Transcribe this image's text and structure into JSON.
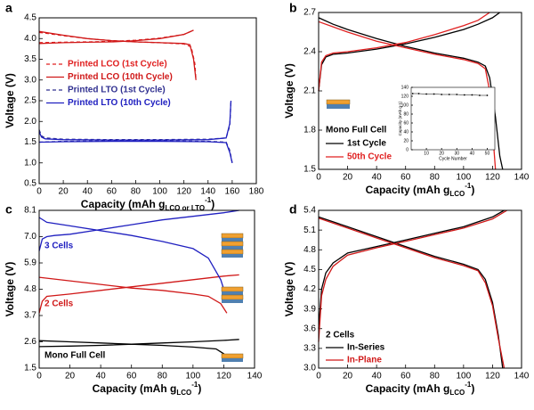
{
  "chart_data": [
    {
      "type": "line",
      "letter": "a",
      "ylabel": "Voltage (V)",
      "xlabel": [
        "Capacity (mAh g",
        "LCO or LTO",
        "-1",
        ")"
      ],
      "xlim": [
        0,
        180
      ],
      "xticks": [
        0,
        20,
        40,
        60,
        80,
        100,
        120,
        140,
        160,
        180
      ],
      "ylim": [
        0.5,
        4.5
      ],
      "yticks": [
        0.5,
        {
          "value": 1,
          "label": "1.0"
        },
        1.5,
        {
          "value": 2,
          "label": "2.0"
        },
        2.5,
        {
          "value": 3,
          "label": "3.0"
        },
        3.5,
        {
          "value": 4,
          "label": "4.0"
        },
        4.5
      ],
      "series": [
        {
          "name": "Printed LCO (1st Cycle)",
          "color": "#e02020",
          "dash": true,
          "x": [
            0,
            20,
            40,
            60,
            80,
            100,
            120,
            128,
            null,
            0,
            20,
            40,
            60,
            80,
            100,
            120,
            126,
            129,
            130
          ],
          "values": [
            3.9,
            3.91,
            3.92,
            3.93,
            3.96,
            4.01,
            4.1,
            4.2,
            null,
            4.15,
            4.07,
            4.0,
            3.95,
            3.92,
            3.9,
            3.87,
            3.8,
            3.4,
            3.0
          ]
        },
        {
          "name": "Printed LCO (10th Cycle)",
          "color": "#d01818",
          "dash": false,
          "x": [
            0,
            20,
            40,
            60,
            80,
            100,
            120,
            128,
            null,
            0,
            20,
            40,
            60,
            80,
            100,
            120,
            125,
            128,
            130
          ],
          "values": [
            3.88,
            3.9,
            3.91,
            3.92,
            3.95,
            4.0,
            4.1,
            4.2,
            null,
            4.17,
            4.08,
            4.0,
            3.95,
            3.92,
            3.9,
            3.88,
            3.85,
            3.5,
            3.0
          ]
        },
        {
          "name": "Printed LTO (1st Cycle)",
          "color": "#303090",
          "dash": true,
          "x": [
            0,
            2,
            5,
            20,
            60,
            100,
            140,
            155,
            158,
            159,
            null,
            0,
            20,
            60,
            100,
            140,
            155,
            158,
            160
          ],
          "values": [
            1.8,
            1.65,
            1.6,
            1.57,
            1.56,
            1.56,
            1.57,
            1.6,
            1.9,
            2.5,
            null,
            1.5,
            1.52,
            1.53,
            1.53,
            1.52,
            1.5,
            1.3,
            1.0
          ]
        },
        {
          "name": "Printed LTO (10th Cycle)",
          "color": "#2020c0",
          "dash": false,
          "x": [
            0,
            2,
            5,
            20,
            60,
            100,
            140,
            155,
            158,
            159,
            null,
            0,
            20,
            60,
            100,
            140,
            155,
            158,
            160
          ],
          "values": [
            1.75,
            1.62,
            1.58,
            1.56,
            1.55,
            1.55,
            1.56,
            1.6,
            1.95,
            2.5,
            null,
            1.5,
            1.51,
            1.52,
            1.52,
            1.51,
            1.49,
            1.25,
            1.0
          ]
        }
      ]
    },
    {
      "type": "line",
      "letter": "b",
      "ylabel": "Voltage (V)",
      "annotation": "Mono Full Cell",
      "xlabel": [
        "Capacity (mAh g",
        "LCO",
        "-1",
        ")"
      ],
      "xlim": [
        0,
        140
      ],
      "xticks": [
        0,
        20,
        40,
        60,
        80,
        100,
        120,
        140
      ],
      "ylim": [
        1.5,
        2.7
      ],
      "yticks": [
        1.5,
        1.8,
        2.1,
        2.4,
        2.7
      ],
      "series": [
        {
          "name": "1st Cycle",
          "color": "#000000",
          "x": [
            0,
            2,
            5,
            10,
            20,
            40,
            60,
            80,
            100,
            110,
            120,
            125,
            null,
            0,
            10,
            20,
            40,
            60,
            80,
            100,
            110,
            115,
            118,
            122,
            125,
            127
          ],
          "values": [
            2.1,
            2.3,
            2.36,
            2.38,
            2.39,
            2.42,
            2.46,
            2.51,
            2.57,
            2.61,
            2.66,
            2.7,
            null,
            2.66,
            2.61,
            2.57,
            2.5,
            2.44,
            2.39,
            2.35,
            2.32,
            2.29,
            2.2,
            1.9,
            1.6,
            1.5
          ]
        },
        {
          "name": "50th Cycle",
          "color": "#e02020",
          "x": [
            0,
            2,
            5,
            10,
            20,
            40,
            60,
            80,
            100,
            110,
            118,
            null,
            0,
            10,
            20,
            40,
            60,
            80,
            100,
            110,
            115,
            118,
            120,
            122
          ],
          "values": [
            2.1,
            2.32,
            2.37,
            2.39,
            2.4,
            2.43,
            2.47,
            2.53,
            2.6,
            2.64,
            2.7,
            null,
            2.63,
            2.59,
            2.55,
            2.48,
            2.43,
            2.38,
            2.34,
            2.31,
            2.27,
            2.1,
            1.8,
            1.5
          ]
        }
      ]
    },
    {
      "type": "line",
      "inset": true,
      "ylabel": "Capacity (mAh g-1)",
      "xlabel": "Cycle Number",
      "markers": true,
      "xlim": [
        0,
        55
      ],
      "xticks": [
        10,
        20,
        30,
        40,
        50
      ],
      "ylim": [
        0,
        140
      ],
      "yticks": [
        0,
        20,
        40,
        60,
        80,
        100,
        120,
        140
      ],
      "series": [
        {
          "color": "#000000",
          "x": [
            1,
            5,
            10,
            15,
            20,
            25,
            30,
            35,
            40,
            45,
            50
          ],
          "values": [
            126,
            126,
            125,
            125,
            124,
            124,
            124,
            123,
            123,
            122,
            122
          ]
        }
      ]
    },
    {
      "type": "line",
      "letter": "c",
      "ylabel": "Voltage (V)",
      "labelled": true,
      "xlabel": [
        "Capacity (mAh g",
        "LCO",
        "-1",
        ")"
      ],
      "xlim": [
        0,
        140
      ],
      "xticks": [
        0,
        20,
        40,
        60,
        80,
        100,
        120,
        140
      ],
      "ylim": [
        1.5,
        8.1
      ],
      "yticks": [
        1.5,
        2.6,
        3.7,
        4.8,
        5.9,
        {
          "value": 7,
          "label": "7.0"
        },
        8.1
      ],
      "series": [
        {
          "name": "Mono Full Cell",
          "color": "#000000",
          "x": [
            0,
            20,
            40,
            60,
            80,
            100,
            120,
            130,
            null,
            0,
            20,
            40,
            60,
            80,
            100,
            115,
            120,
            122
          ],
          "values": [
            2.4,
            2.42,
            2.45,
            2.5,
            2.55,
            2.6,
            2.66,
            2.7,
            null,
            2.65,
            2.6,
            2.55,
            2.5,
            2.45,
            2.38,
            2.3,
            2.1,
            1.9
          ]
        },
        {
          "name": "2 Cells",
          "color": "#d01818",
          "x": [
            0,
            2,
            5,
            20,
            40,
            60,
            80,
            100,
            120,
            130,
            null,
            0,
            20,
            40,
            60,
            80,
            100,
            110,
            118,
            122
          ],
          "values": [
            3.8,
            4.3,
            4.5,
            4.6,
            4.75,
            4.9,
            5.05,
            5.2,
            5.35,
            5.4,
            null,
            5.3,
            5.15,
            5.0,
            4.85,
            4.75,
            4.6,
            4.5,
            4.2,
            3.8
          ]
        },
        {
          "name": "3 Cells",
          "color": "#2020c0",
          "x": [
            0,
            2,
            5,
            10,
            20,
            40,
            60,
            80,
            100,
            120,
            130,
            null,
            0,
            5,
            20,
            40,
            60,
            80,
            100,
            110,
            118,
            122
          ],
          "values": [
            6.4,
            6.9,
            7.0,
            7.05,
            7.1,
            7.3,
            7.5,
            7.7,
            7.85,
            8.0,
            8.1,
            null,
            7.8,
            7.6,
            7.45,
            7.25,
            7.05,
            6.8,
            6.5,
            6.1,
            5.2,
            4.4
          ]
        }
      ]
    },
    {
      "type": "line",
      "letter": "d",
      "ylabel": "Voltage (V)",
      "annotation": "2 Cells",
      "xlabel": [
        "Capacity (mAh g",
        "LCO",
        "-1",
        ")"
      ],
      "xlim": [
        0,
        140
      ],
      "xticks": [
        0,
        20,
        40,
        60,
        80,
        100,
        120,
        140
      ],
      "ylim": [
        3,
        5.4
      ],
      "yticks": [
        {
          "value": 3,
          "label": "3.0"
        },
        3.3,
        3.6,
        3.9,
        4.2,
        4.5,
        4.8,
        5.1,
        5.4
      ],
      "series": [
        {
          "name": "In-Series",
          "color": "#000000",
          "x": [
            0,
            2,
            5,
            10,
            20,
            40,
            60,
            80,
            100,
            120,
            128,
            null,
            0,
            20,
            40,
            60,
            80,
            100,
            110,
            115,
            120,
            124,
            127
          ],
          "values": [
            3.6,
            4.2,
            4.45,
            4.6,
            4.75,
            4.85,
            4.95,
            5.05,
            5.15,
            5.3,
            5.4,
            null,
            5.3,
            5.15,
            5.0,
            4.85,
            4.7,
            4.58,
            4.5,
            4.35,
            4.0,
            3.5,
            3.0
          ]
        },
        {
          "name": "In-Plane",
          "color": "#d01818",
          "x": [
            0,
            2,
            5,
            10,
            20,
            40,
            60,
            80,
            100,
            120,
            130,
            null,
            0,
            20,
            40,
            60,
            80,
            100,
            110,
            115,
            120,
            124,
            128
          ],
          "values": [
            3.4,
            4.1,
            4.35,
            4.55,
            4.72,
            4.83,
            4.93,
            5.03,
            5.13,
            5.27,
            5.4,
            null,
            5.28,
            5.13,
            4.98,
            4.83,
            4.68,
            4.56,
            4.48,
            4.3,
            3.95,
            3.45,
            3.0
          ]
        }
      ]
    }
  ]
}
